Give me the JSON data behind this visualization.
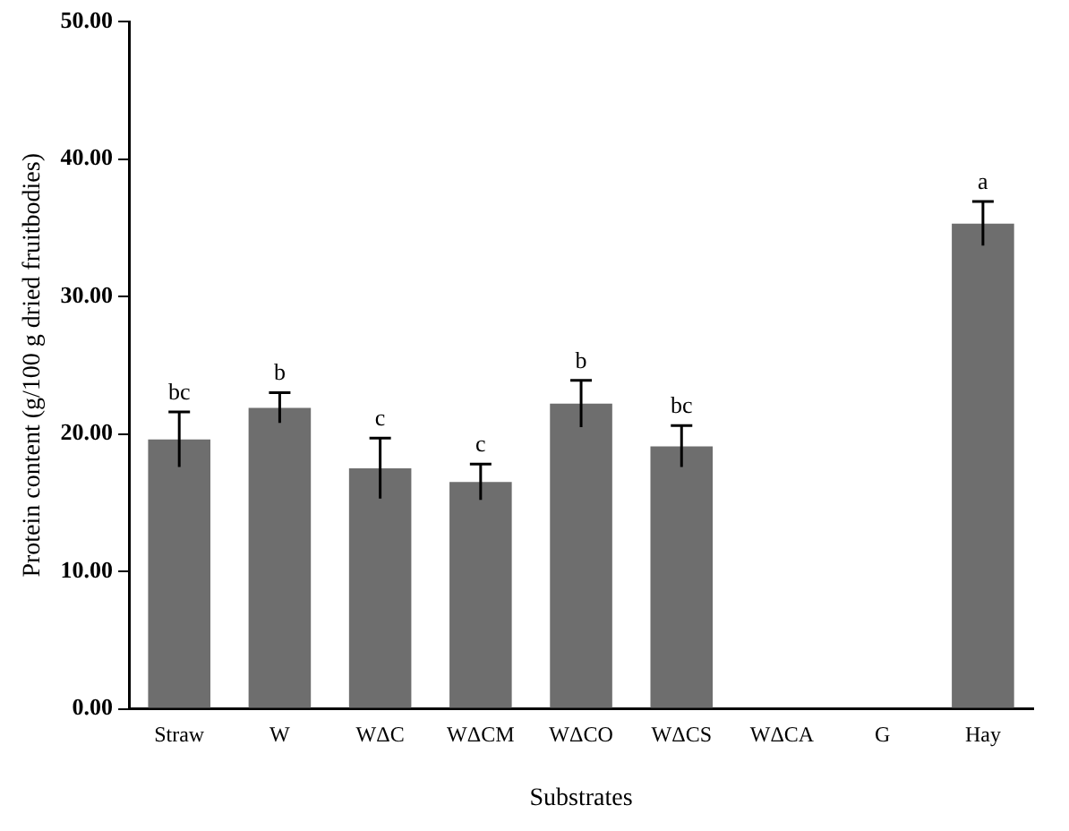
{
  "chart_data": {
    "type": "bar",
    "xlabel": "Substrates",
    "ylabel": "Protein content (g/100 g dried fruitbodies)",
    "categories": [
      "Straw",
      "W",
      "WΔC",
      "WΔCM",
      "WΔCO",
      "WΔCS",
      "WΔCA",
      "G",
      "Hay"
    ],
    "values": [
      19.6,
      21.9,
      17.5,
      16.5,
      22.2,
      19.1,
      0,
      0,
      35.3
    ],
    "errors": [
      2.0,
      1.1,
      2.2,
      1.3,
      1.7,
      1.5,
      null,
      null,
      1.6
    ],
    "color": "#6e6e6e",
    "ylim": [
      0,
      50
    ],
    "yticks": [
      {
        "value": 0,
        "label": "0.00"
      },
      {
        "value": 10,
        "label": "10.00"
      },
      {
        "value": 20,
        "label": "20.00"
      },
      {
        "value": 30,
        "label": "30.00"
      },
      {
        "value": 40,
        "label": "40.00"
      },
      {
        "value": 50,
        "label": "50.00"
      }
    ],
    "annotations": [
      {
        "text": "bc",
        "x": "Straw",
        "y": 21.6
      },
      {
        "text": "b",
        "x": "W",
        "y": 23.0
      },
      {
        "text": "c",
        "x": "WΔC",
        "y": 19.7
      },
      {
        "text": "c",
        "x": "WΔCM",
        "y": 17.8
      },
      {
        "text": "b",
        "x": "WΔCO",
        "y": 23.9
      },
      {
        "text": "bc",
        "x": "WΔCS",
        "y": 20.6
      },
      {
        "text": "a",
        "x": "Hay",
        "y": 36.9
      }
    ],
    "grid": false,
    "legend": false
  }
}
